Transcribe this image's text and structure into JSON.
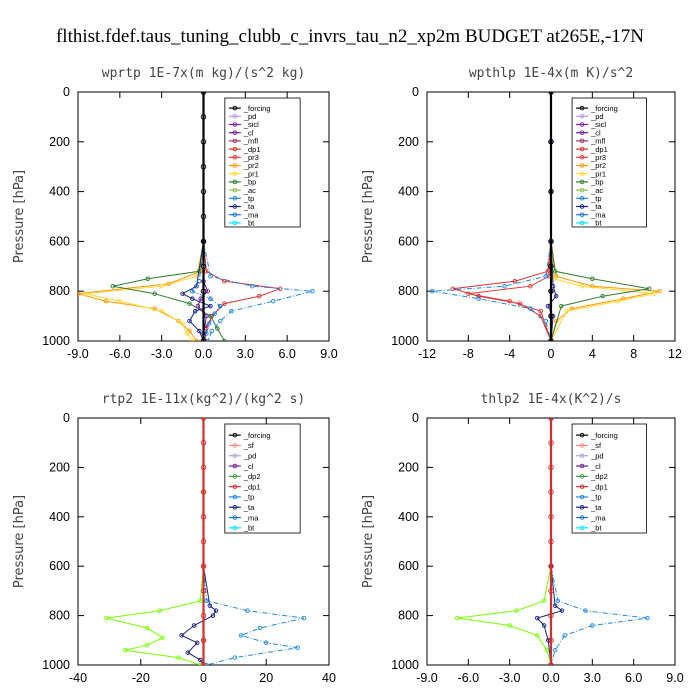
{
  "figure_title": "flthist.fdef.taus_tuning_clubb_c_invrs_tau_n2_xp2m  BUDGET at265E,-17N",
  "colors": {
    "_forcing": "#000000",
    "_pd": "#b39ddb",
    "_sicl": "#7b1fa2",
    "_cl": "#6a1b9a",
    "_mfl": "#a0306a",
    "_dp1": "#d32f2f",
    "_pr3": "#e53935",
    "_pr2": "#ff9800",
    "_pr1": "#fdd835",
    "_bp": "#2e7d32",
    "_ac": "#8bc34a",
    "_tp": "#1e88e5",
    "_ta": "#1a237e",
    "_ma": "#1976d2",
    "_bt": "#00e5ff",
    "_sf": "#ff8a80",
    "_dp2": "#43a047",
    "_ma2": "#1565c0"
  },
  "chart_data": [
    {
      "type": "line",
      "title": "wprtp  1E-7x(m kg)/(s^2 kg)",
      "ylabel": "Pressure [hPa]",
      "xlim": [
        -9,
        9
      ],
      "ylim": [
        1000,
        0
      ],
      "y_inverted": true,
      "xticks": [
        "-9.0",
        "-6.0",
        "-3.0",
        "0.0",
        "3.0",
        "6.0",
        "9.0"
      ],
      "xtick_values": [
        -9,
        -6,
        -3,
        0,
        3,
        6,
        9
      ],
      "yticks": [
        "0",
        "200",
        "400",
        "600",
        "800",
        "1000"
      ],
      "ytick_values": [
        0,
        200,
        400,
        600,
        800,
        1000
      ],
      "legend_position": "top-right",
      "legend": [
        "_forcing",
        "_pd",
        "_sicl",
        "_cl",
        "_mfl",
        "_dp1",
        "_pr3",
        "_pr2",
        "_pr1",
        "_bp",
        "_ac",
        "_tp",
        "_ta",
        "_ma",
        "_bt"
      ],
      "series": [
        {
          "name": "_forcing",
          "color": "#000000",
          "x": [
            0,
            0,
            0,
            0,
            0,
            0,
            0,
            0,
            0,
            0
          ],
          "y": [
            0,
            100,
            200,
            300,
            400,
            500,
            600,
            700,
            800,
            1000
          ]
        },
        {
          "name": "_dp1",
          "color": "#d32f2f",
          "x": [
            0,
            0,
            0.2,
            1.5,
            5.5,
            4.0,
            1.5,
            0.6,
            0.2,
            0.1
          ],
          "y": [
            0,
            600,
            720,
            760,
            790,
            820,
            850,
            900,
            950,
            1000
          ]
        },
        {
          "name": "_pr2",
          "color": "#ff9800",
          "x": [
            0,
            0,
            -0.2,
            -2.5,
            -9.0,
            -7.0,
            -3.5,
            -1.8,
            -1.0,
            -0.5
          ],
          "y": [
            0,
            600,
            720,
            770,
            810,
            840,
            870,
            920,
            960,
            1000
          ]
        },
        {
          "name": "_pr1",
          "color": "#fdd835",
          "x": [
            0,
            0,
            -0.5,
            -3.0,
            -8.5,
            -6.0,
            -3.0,
            -1.5,
            -1.2,
            -0.8
          ],
          "y": [
            0,
            600,
            740,
            780,
            810,
            840,
            880,
            930,
            970,
            1000
          ]
        },
        {
          "name": "_bp",
          "color": "#2e7d32",
          "x": [
            0,
            0,
            -0.3,
            -4.0,
            -6.5,
            -3.5,
            -1.0,
            0.5,
            1.0,
            1.5
          ],
          "y": [
            0,
            600,
            720,
            750,
            780,
            810,
            850,
            900,
            950,
            1000
          ]
        },
        {
          "name": "_tp",
          "color": "#1e88e5",
          "x": [
            0,
            0,
            0.5,
            3.5,
            7.8,
            5.0,
            2.0,
            1.2,
            0.6,
            0.3
          ],
          "y": [
            0,
            600,
            740,
            780,
            800,
            840,
            880,
            920,
            960,
            1000
          ]
        },
        {
          "name": "_ta",
          "color": "#1a237e",
          "x": [
            0,
            0,
            -0.5,
            -1.5,
            -0.8,
            0.5,
            -0.6,
            -1.0,
            -0.3,
            0
          ],
          "y": [
            0,
            600,
            780,
            810,
            830,
            860,
            880,
            920,
            960,
            1000
          ]
        },
        {
          "name": "_ma",
          "color": "#1976d2",
          "x": [
            0,
            0,
            -0.3,
            -0.8,
            0.5,
            1.2,
            0.8,
            0.4,
            0.2,
            0
          ],
          "y": [
            0,
            600,
            760,
            800,
            830,
            860,
            890,
            930,
            970,
            1000
          ]
        },
        {
          "name": "_cl",
          "color": "#6a1b9a",
          "x": [
            0,
            0,
            0,
            0.3,
            -0.2,
            -0.4,
            0.2,
            0.1,
            0,
            0
          ],
          "y": [
            0,
            600,
            760,
            800,
            830,
            860,
            900,
            940,
            970,
            1000
          ]
        }
      ]
    },
    {
      "type": "line",
      "title": "wpthlp  1E-4x(m K)/s^2",
      "ylabel": "Pressure [hPa]",
      "xlim": [
        -12,
        12
      ],
      "ylim": [
        1000,
        0
      ],
      "y_inverted": true,
      "xticks": [
        "-12",
        "-8",
        "-4",
        "0",
        "4",
        "8",
        "12"
      ],
      "xtick_values": [
        -12,
        -8,
        -4,
        0,
        4,
        8,
        12
      ],
      "yticks": [
        "0",
        "200",
        "400",
        "600",
        "800",
        "1000"
      ],
      "ytick_values": [
        0,
        200,
        400,
        600,
        800,
        1000
      ],
      "legend_position": "top-right",
      "legend": [
        "_forcing",
        "_pd",
        "_sicl",
        "_cl",
        "_mfl",
        "_dp1",
        "_pr3",
        "_pr2",
        "_pr1",
        "_bp",
        "_ac",
        "_tp",
        "_ta",
        "_ma",
        "_bt"
      ],
      "series": [
        {
          "name": "_forcing",
          "color": "#000000",
          "x": [
            0,
            0,
            0,
            0,
            0,
            0,
            0,
            0
          ],
          "y": [
            0,
            200,
            400,
            600,
            700,
            800,
            900,
            1000
          ]
        },
        {
          "name": "_pd",
          "color": "#b39ddb",
          "x": [
            0,
            0,
            0,
            0,
            0,
            0,
            0,
            0
          ],
          "y": [
            0,
            200,
            400,
            600,
            700,
            800,
            900,
            1000
          ]
        },
        {
          "name": "_dp1",
          "color": "#d32f2f",
          "x": [
            0,
            0,
            -0.3,
            -3.5,
            -9.5,
            -7.0,
            -3.0,
            -1.0,
            0
          ],
          "y": [
            0,
            600,
            720,
            760,
            790,
            820,
            850,
            900,
            1000
          ]
        },
        {
          "name": "_pr3",
          "color": "#e53935",
          "x": [
            0,
            0,
            -0.2,
            -2.0,
            -8.0,
            -4.0,
            -1.0,
            0
          ],
          "y": [
            0,
            600,
            740,
            780,
            810,
            840,
            880,
            1000
          ]
        },
        {
          "name": "_pr2",
          "color": "#ff9800",
          "x": [
            0,
            0,
            0.5,
            4.0,
            10.5,
            7.0,
            2.0,
            0.5,
            0
          ],
          "y": [
            0,
            600,
            740,
            780,
            800,
            830,
            870,
            920,
            1000
          ]
        },
        {
          "name": "_pr1",
          "color": "#fdd835",
          "x": [
            0,
            0,
            0.3,
            3.0,
            10.0,
            6.5,
            1.5,
            0
          ],
          "y": [
            0,
            600,
            750,
            780,
            810,
            840,
            880,
            1000
          ]
        },
        {
          "name": "_bp",
          "color": "#2e7d32",
          "x": [
            0,
            0,
            0.4,
            4.0,
            9.5,
            5.0,
            1.0,
            0
          ],
          "y": [
            0,
            600,
            720,
            750,
            790,
            820,
            860,
            1000
          ]
        },
        {
          "name": "_tp",
          "color": "#1e88e5",
          "x": [
            0,
            0,
            -0.5,
            -4.5,
            -11.5,
            -7.0,
            -2.0,
            -0.5,
            0
          ],
          "y": [
            0,
            600,
            740,
            780,
            800,
            830,
            870,
            920,
            1000
          ]
        },
        {
          "name": "_ta",
          "color": "#1a237e",
          "x": [
            0,
            0,
            0.2,
            0.5,
            -0.3,
            0.2,
            0
          ],
          "y": [
            0,
            600,
            780,
            820,
            860,
            900,
            1000
          ]
        },
        {
          "name": "_cl",
          "color": "#6a1b9a",
          "x": [
            0,
            0,
            0,
            0,
            0,
            0,
            0
          ],
          "y": [
            0,
            200,
            400,
            600,
            800,
            900,
            1000
          ]
        }
      ]
    },
    {
      "type": "line",
      "title": "rtp2  1E-11x(kg^2)/(kg^2 s)",
      "ylabel": "Pressure [hPa]",
      "xlim": [
        -40,
        40
      ],
      "ylim": [
        1000,
        0
      ],
      "y_inverted": true,
      "xticks": [
        "-40",
        "-20",
        "0",
        "20",
        "40"
      ],
      "xtick_values": [
        -40,
        -20,
        0,
        20,
        40
      ],
      "yticks": [
        "0",
        "200",
        "400",
        "600",
        "800",
        "1000"
      ],
      "ytick_values": [
        0,
        200,
        400,
        600,
        800,
        1000
      ],
      "legend_position": "top-right",
      "legend": [
        "_forcing",
        "_sf",
        "_pd",
        "_cl",
        "_dp2",
        "_dp1",
        "_tp",
        "_ta",
        "_ma",
        "_bt"
      ],
      "series": [
        {
          "name": "_forcing",
          "color": "#d32f2f",
          "x": [
            0,
            0,
            0,
            0,
            0,
            0,
            0,
            0,
            0,
            0,
            0
          ],
          "y": [
            0,
            100,
            200,
            300,
            400,
            500,
            600,
            700,
            800,
            900,
            1000
          ]
        },
        {
          "name": "_dp1",
          "color": "#76ff03",
          "x": [
            0,
            0,
            -1,
            -14,
            -31,
            -18,
            -13,
            -18,
            -25,
            -8,
            -1
          ],
          "y": [
            0,
            600,
            740,
            780,
            810,
            850,
            890,
            920,
            940,
            970,
            1000
          ]
        },
        {
          "name": "_tp",
          "color": "#1e88e5",
          "x": [
            0,
            0,
            1,
            14,
            32,
            18,
            12,
            20,
            30,
            10,
            1
          ],
          "y": [
            0,
            600,
            740,
            780,
            810,
            850,
            880,
            910,
            930,
            970,
            1000
          ]
        },
        {
          "name": "_ta",
          "color": "#1a237e",
          "x": [
            0,
            0,
            2,
            4,
            3,
            -3,
            -7,
            -2,
            -5,
            -1,
            0
          ],
          "y": [
            0,
            600,
            760,
            780,
            800,
            840,
            880,
            910,
            950,
            980,
            1000
          ]
        },
        {
          "name": "_cl",
          "color": "#ff9800",
          "x": [
            0,
            0,
            0,
            0,
            0
          ],
          "y": [
            0,
            300,
            600,
            900,
            1000
          ]
        }
      ]
    },
    {
      "type": "line",
      "title": "thlp2  1E-4x(K^2)/s",
      "ylabel": "Pressure [hPa]",
      "xlim": [
        -9,
        9
      ],
      "ylim": [
        1000,
        0
      ],
      "y_inverted": true,
      "xticks": [
        "-9.0",
        "-6.0",
        "-3.0",
        "0.0",
        "3.0",
        "6.0",
        "9.0"
      ],
      "xtick_values": [
        -9,
        -6,
        -3,
        0,
        3,
        6,
        9
      ],
      "yticks": [
        "0",
        "200",
        "400",
        "600",
        "800",
        "1000"
      ],
      "ytick_values": [
        0,
        200,
        400,
        600,
        800,
        1000
      ],
      "legend_position": "top-right",
      "legend": [
        "_forcing",
        "_sf",
        "_pd",
        "_cl",
        "_dp2",
        "_dp1",
        "_tp",
        "_ta",
        "_ma",
        "_bt"
      ],
      "series": [
        {
          "name": "_forcing",
          "color": "#d32f2f",
          "x": [
            0,
            0,
            0,
            0,
            0,
            0,
            0,
            0,
            0,
            0,
            0
          ],
          "y": [
            0,
            100,
            200,
            300,
            400,
            500,
            600,
            700,
            800,
            900,
            1000
          ]
        },
        {
          "name": "_dp1",
          "color": "#76ff03",
          "x": [
            0,
            0,
            -0.5,
            -2.5,
            -6.8,
            -3.0,
            -1.0,
            -0.3,
            0
          ],
          "y": [
            0,
            600,
            740,
            780,
            810,
            840,
            880,
            940,
            1000
          ]
        },
        {
          "name": "_tp",
          "color": "#1e88e5",
          "x": [
            0,
            0,
            0.5,
            2.5,
            7.0,
            3.0,
            1.0,
            0.3,
            0
          ],
          "y": [
            0,
            600,
            740,
            780,
            810,
            840,
            880,
            940,
            1000
          ]
        },
        {
          "name": "_ta",
          "color": "#1a237e",
          "x": [
            0,
            0,
            0.3,
            0.8,
            -1.0,
            -0.5,
            -0.2,
            0
          ],
          "y": [
            0,
            600,
            760,
            780,
            810,
            840,
            900,
            1000
          ]
        }
      ]
    }
  ]
}
